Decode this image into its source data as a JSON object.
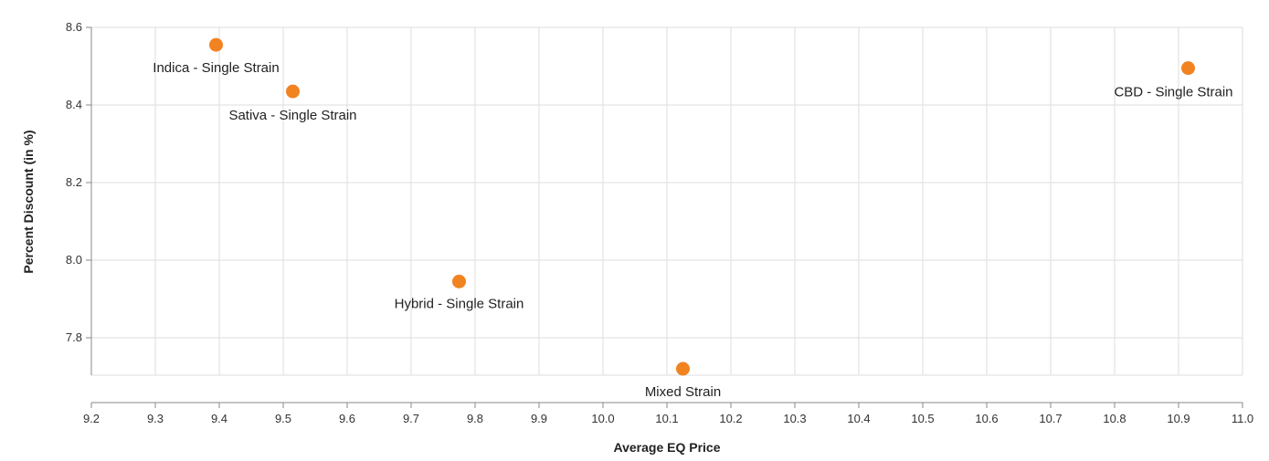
{
  "chart_data": {
    "type": "scatter",
    "xlabel": "Average EQ Price",
    "ylabel": "Percent Discount (in %)",
    "xlim": [
      9.2,
      11.0
    ],
    "ylim": [
      7.7,
      8.6
    ],
    "x_ticks": [
      "9.2",
      "9.3",
      "9.4",
      "9.5",
      "9.6",
      "9.7",
      "9.8",
      "9.9",
      "10.0",
      "10.1",
      "10.2",
      "10.3",
      "10.4",
      "10.5",
      "10.6",
      "10.7",
      "10.8",
      "10.9",
      "11.0"
    ],
    "y_ticks": [
      "7.8",
      "8.0",
      "8.2",
      "8.4",
      "8.6"
    ],
    "grid": true,
    "point_color": "#f28321",
    "points": [
      {
        "label": "Indica - Single Strain",
        "x": 9.395,
        "y": 8.555
      },
      {
        "label": "Sativa - Single Strain",
        "x": 9.515,
        "y": 8.435
      },
      {
        "label": "Hybrid - Single Strain",
        "x": 9.775,
        "y": 7.945
      },
      {
        "label": "Mixed Strain",
        "x": 10.125,
        "y": 7.72
      },
      {
        "label": "CBD - Single Strain",
        "x": 10.915,
        "y": 8.495
      }
    ]
  }
}
